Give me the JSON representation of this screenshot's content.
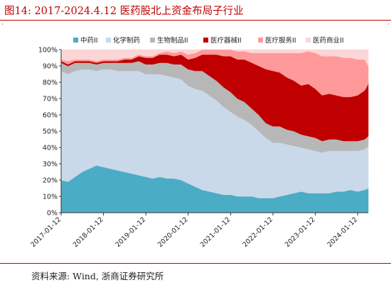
{
  "header": {
    "title": "图14:    2017-2024.4.12 医药股北上资金布局子行业"
  },
  "footer": {
    "source": "资料来源:  Wind,  浙商证券研究所"
  },
  "marks": {
    "left": "·",
    "right": "·"
  },
  "colors": {
    "title": "#c00000",
    "zhongyao": "#4bacc6",
    "huaxue": "#c9d9ea",
    "shengwu": "#b7b7b7",
    "qixie": "#c00000",
    "fuwu": "#ff9999",
    "shangye": "#fcd6d6"
  },
  "chart_data": {
    "type": "area",
    "stacked": true,
    "y_unit": "%",
    "ylim": [
      0,
      100
    ],
    "y_ticks": [
      0,
      10,
      20,
      30,
      40,
      50,
      60,
      70,
      80,
      90,
      100
    ],
    "y_tick_labels": [
      "0%",
      "10%",
      "20%",
      "30%",
      "40%",
      "50%",
      "60%",
      "70%",
      "80%",
      "90%",
      "100%"
    ],
    "x_tick_labels": [
      "2017-01-12",
      "2018-01-12",
      "2019-01-12",
      "2020-01-12",
      "2021-01-12",
      "2022-01-12",
      "2023-01-12",
      "2024-01-12"
    ],
    "xlim": [
      "2017-01-12",
      "2024-04-12"
    ],
    "legend_position": "top",
    "grid": false,
    "x": [
      "2017-01-12",
      "2017-03-12",
      "2017-05-12",
      "2017-07-12",
      "2017-09-12",
      "2017-11-12",
      "2018-01-12",
      "2018-03-12",
      "2018-05-12",
      "2018-07-12",
      "2018-09-12",
      "2018-11-12",
      "2019-01-12",
      "2019-03-12",
      "2019-05-12",
      "2019-07-12",
      "2019-09-12",
      "2019-11-12",
      "2020-01-12",
      "2020-03-12",
      "2020-05-12",
      "2020-07-12",
      "2020-09-12",
      "2020-11-12",
      "2021-01-12",
      "2021-03-12",
      "2021-05-12",
      "2021-07-12",
      "2021-09-12",
      "2021-11-12",
      "2022-01-12",
      "2022-03-12",
      "2022-05-12",
      "2022-07-12",
      "2022-09-12",
      "2022-11-12",
      "2023-01-12",
      "2023-03-12",
      "2023-05-12",
      "2023-07-12",
      "2023-09-12",
      "2023-11-12",
      "2024-01-12",
      "2024-03-12",
      "2024-04-12"
    ],
    "series": [
      {
        "name": "中药II",
        "color_key": "zhongyao",
        "values": [
          20,
          19,
          22,
          25,
          27,
          29,
          28,
          27,
          26,
          25,
          24,
          23,
          22,
          21,
          22,
          21,
          21,
          20,
          18,
          16,
          14,
          13,
          12,
          11,
          11,
          10,
          10,
          10,
          9,
          9,
          9,
          10,
          11,
          12,
          13,
          12,
          12,
          12,
          12,
          13,
          13,
          14,
          13,
          14,
          15
        ]
      },
      {
        "name": "化学制药",
        "color_key": "huaxue",
        "values": [
          67,
          66,
          65,
          63,
          61,
          58,
          60,
          61,
          61,
          62,
          63,
          64,
          63,
          64,
          63,
          63,
          62,
          62,
          60,
          60,
          61,
          59,
          57,
          54,
          51,
          49,
          47,
          44,
          41,
          37,
          34,
          33,
          31,
          29,
          27,
          27,
          26,
          25,
          26,
          25,
          25,
          24,
          25,
          25,
          26
        ]
      },
      {
        "name": "生物制品II",
        "color_key": "shengwu",
        "values": [
          5,
          5,
          5,
          4,
          4,
          4,
          4,
          4,
          5,
          5,
          5,
          6,
          6,
          6,
          7,
          8,
          8,
          9,
          10,
          11,
          12,
          12,
          12,
          12,
          12,
          11,
          11,
          10,
          10,
          9,
          10,
          10,
          9,
          9,
          8,
          8,
          8,
          7,
          7,
          7,
          6,
          6,
          6,
          6,
          6
        ]
      },
      {
        "name": "医疗器械II",
        "color_key": "qixie",
        "values": [
          1,
          1,
          1,
          1,
          1,
          1,
          1,
          1,
          1,
          2,
          2,
          3,
          4,
          4,
          5,
          5,
          5,
          6,
          6,
          8,
          10,
          13,
          16,
          19,
          22,
          24,
          26,
          28,
          30,
          33,
          34,
          33,
          32,
          31,
          30,
          32,
          30,
          28,
          28,
          27,
          27,
          27,
          28,
          30,
          32
        ]
      },
      {
        "name": "医疗服务II",
        "color_key": "fuwu",
        "values": [
          1,
          2,
          1,
          1,
          1,
          1,
          1,
          1,
          1,
          1,
          1,
          1,
          1,
          1,
          1,
          2,
          2,
          2,
          3,
          3,
          3,
          3,
          3,
          4,
          4,
          5,
          5,
          6,
          8,
          10,
          11,
          12,
          15,
          17,
          20,
          20,
          22,
          24,
          23,
          24,
          24,
          24,
          22,
          19,
          11
        ]
      },
      {
        "name": "医药商业II",
        "color_key": "shangye",
        "values": [
          6,
          7,
          6,
          6,
          6,
          7,
          6,
          6,
          6,
          5,
          5,
          3,
          4,
          4,
          2,
          1,
          2,
          1,
          3,
          2,
          0,
          0,
          0,
          0,
          0,
          1,
          1,
          2,
          2,
          2,
          2,
          2,
          2,
          2,
          2,
          1,
          2,
          4,
          4,
          4,
          5,
          5,
          6,
          6,
          10
        ]
      }
    ]
  }
}
